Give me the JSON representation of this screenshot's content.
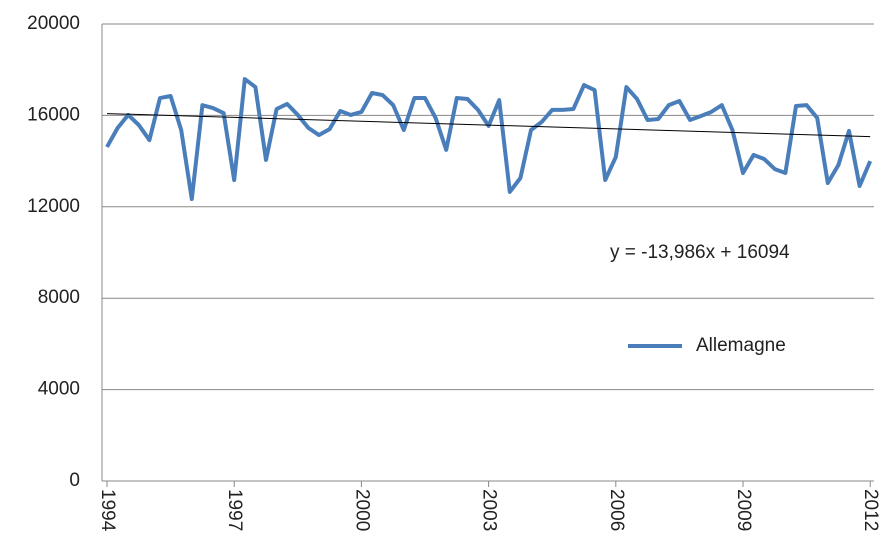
{
  "chart_data": {
    "type": "line",
    "categories": [
      "1994",
      null,
      null,
      null,
      null,
      null,
      null,
      null,
      null,
      null,
      null,
      null,
      "1997",
      null,
      null,
      null,
      null,
      null,
      null,
      null,
      null,
      null,
      null,
      null,
      "2000",
      null,
      null,
      null,
      null,
      null,
      null,
      null,
      null,
      null,
      null,
      null,
      "2003",
      null,
      null,
      null,
      null,
      null,
      null,
      null,
      null,
      null,
      null,
      null,
      "2006",
      null,
      null,
      null,
      null,
      null,
      null,
      null,
      null,
      null,
      null,
      null,
      "2009",
      null,
      null,
      null,
      null,
      null,
      null,
      null,
      null,
      null,
      null,
      null,
      "2012"
    ],
    "series": [
      {
        "name": "Allemagne",
        "color": "#4a7ebb",
        "values": [
          14620,
          15450,
          16020,
          15580,
          14920,
          16760,
          16850,
          15360,
          12340,
          16450,
          16320,
          16100,
          13170,
          17590,
          17240,
          14050,
          16280,
          16500,
          16020,
          15450,
          15140,
          15400,
          16190,
          16020,
          16150,
          16980,
          16890,
          16450,
          15360,
          16760,
          16760,
          15890,
          14490,
          16760,
          16720,
          16240,
          15540,
          16670,
          12650,
          13260,
          15360,
          15710,
          16240,
          16240,
          16280,
          17330,
          17110,
          13170,
          14180,
          17240,
          16720,
          15800,
          15840,
          16450,
          16630,
          15800,
          15970,
          16150,
          16450,
          15360,
          13480,
          14270,
          14090,
          13650,
          13480,
          16410,
          16450,
          15890,
          13040,
          13830,
          15320,
          12910,
          14000
        ]
      }
    ],
    "ylim": [
      0,
      20000
    ],
    "yticks": [
      0,
      4000,
      8000,
      12000,
      16000,
      20000
    ],
    "grid": true,
    "trendline": {
      "slope": -13.986,
      "intercept": 16094,
      "color": "#000000"
    },
    "annotation": "y = -13,986x + 16094",
    "legend": "right"
  }
}
